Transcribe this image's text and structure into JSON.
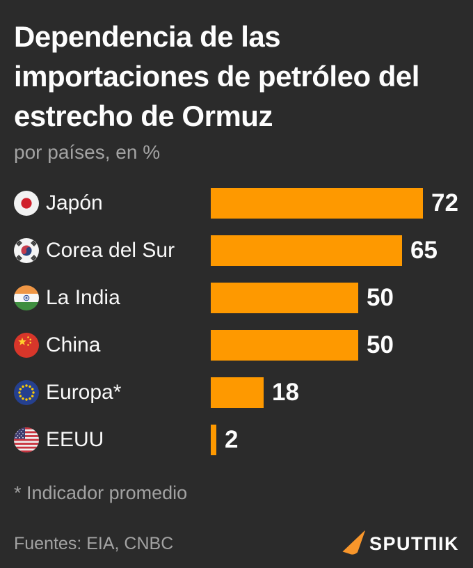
{
  "header": {
    "title": "Dependencia de las importaciones de petróleo del estrecho de Ormuz",
    "subtitle": "por países, en %"
  },
  "chart_data": {
    "type": "bar",
    "orientation": "horizontal",
    "title": "Dependencia de las importaciones de petróleo del estrecho de Ormuz",
    "subtitle": "por países, en %",
    "unit": "%",
    "categories": [
      "Japón",
      "Corea del Sur",
      "La India",
      "China",
      "Europa*",
      "EEUU"
    ],
    "values": [
      72,
      65,
      50,
      50,
      18,
      2
    ],
    "flags": [
      "japan",
      "south-korea",
      "india",
      "china",
      "european-union",
      "united-states"
    ],
    "value_labels_shown": true,
    "xlim": [
      0,
      72
    ],
    "grid": false,
    "bar_color": "#FE9900"
  },
  "footer": {
    "footnote": "* Indicador promedio",
    "sources": "Fuentes: EIA, CNBC",
    "logo_text": "SPUTΠIK"
  },
  "colors": {
    "background": "#2B2B2B",
    "bar": "#FE9900",
    "title_text": "#FDFDFD",
    "muted_text": "#A3A3A3",
    "logo_orange": "#F8962B"
  }
}
